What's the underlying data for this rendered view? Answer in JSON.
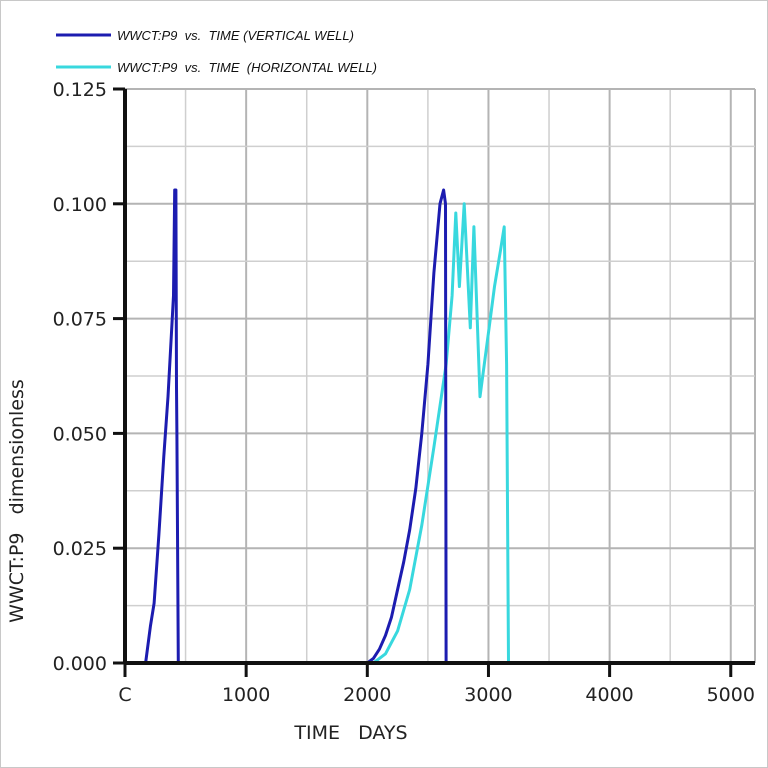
{
  "chart_data": {
    "type": "line",
    "title": "",
    "xlabel": "TIME   DAYS",
    "ylabel": "WWCT:P9   dimensionless",
    "xlim": [
      0,
      5200
    ],
    "ylim": [
      0,
      0.125
    ],
    "xticks": [
      0,
      1000,
      2000,
      3000,
      4000,
      5000
    ],
    "xtick_labels": [
      "C",
      "1000",
      "2000",
      "3000",
      "4000",
      "5000"
    ],
    "yticks": [
      0,
      0.025,
      0.05,
      0.075,
      0.1,
      0.125
    ],
    "ytick_labels": [
      "0.000",
      "0.025",
      "0.050",
      "0.075",
      "0.100",
      "0.125"
    ],
    "grid": true,
    "legend_position": "top-left",
    "series": [
      {
        "name": "WWCT:P9  vs.  TIME (VERTICAL WELL)",
        "color": "#1c1cb0",
        "points": [
          [
            0,
            0
          ],
          [
            170,
            0
          ],
          [
            210,
            0.008
          ],
          [
            240,
            0.013
          ],
          [
            280,
            0.028
          ],
          [
            320,
            0.045
          ],
          [
            355,
            0.058
          ],
          [
            380,
            0.07
          ],
          [
            400,
            0.08
          ],
          [
            410,
            0.103
          ],
          [
            420,
            0.103
          ],
          [
            425,
            0.06
          ],
          [
            428,
            0.05
          ],
          [
            440,
            0
          ],
          [
            2000,
            0
          ],
          [
            2050,
            0.001
          ],
          [
            2100,
            0.003
          ],
          [
            2150,
            0.006
          ],
          [
            2200,
            0.01
          ],
          [
            2250,
            0.016
          ],
          [
            2300,
            0.022
          ],
          [
            2350,
            0.029
          ],
          [
            2400,
            0.038
          ],
          [
            2450,
            0.05
          ],
          [
            2500,
            0.065
          ],
          [
            2550,
            0.085
          ],
          [
            2600,
            0.1
          ],
          [
            2630,
            0.103
          ],
          [
            2645,
            0.1
          ],
          [
            2650,
            0
          ],
          [
            3000,
            0
          ],
          [
            5200,
            0
          ]
        ]
      },
      {
        "name": "WWCT:P9  vs.  TIME  (HORIZONTAL WELL)",
        "color": "#38d8de",
        "points": [
          [
            0,
            0
          ],
          [
            2050,
            0
          ],
          [
            2150,
            0.002
          ],
          [
            2250,
            0.007
          ],
          [
            2350,
            0.016
          ],
          [
            2450,
            0.03
          ],
          [
            2550,
            0.047
          ],
          [
            2650,
            0.065
          ],
          [
            2700,
            0.08
          ],
          [
            2730,
            0.098
          ],
          [
            2760,
            0.082
          ],
          [
            2800,
            0.1
          ],
          [
            2850,
            0.073
          ],
          [
            2880,
            0.095
          ],
          [
            2930,
            0.058
          ],
          [
            3000,
            0.072
          ],
          [
            3050,
            0.082
          ],
          [
            3100,
            0.09
          ],
          [
            3130,
            0.095
          ],
          [
            3150,
            0.065
          ],
          [
            3165,
            0
          ],
          [
            3500,
            0
          ],
          [
            5200,
            0
          ]
        ]
      }
    ]
  }
}
